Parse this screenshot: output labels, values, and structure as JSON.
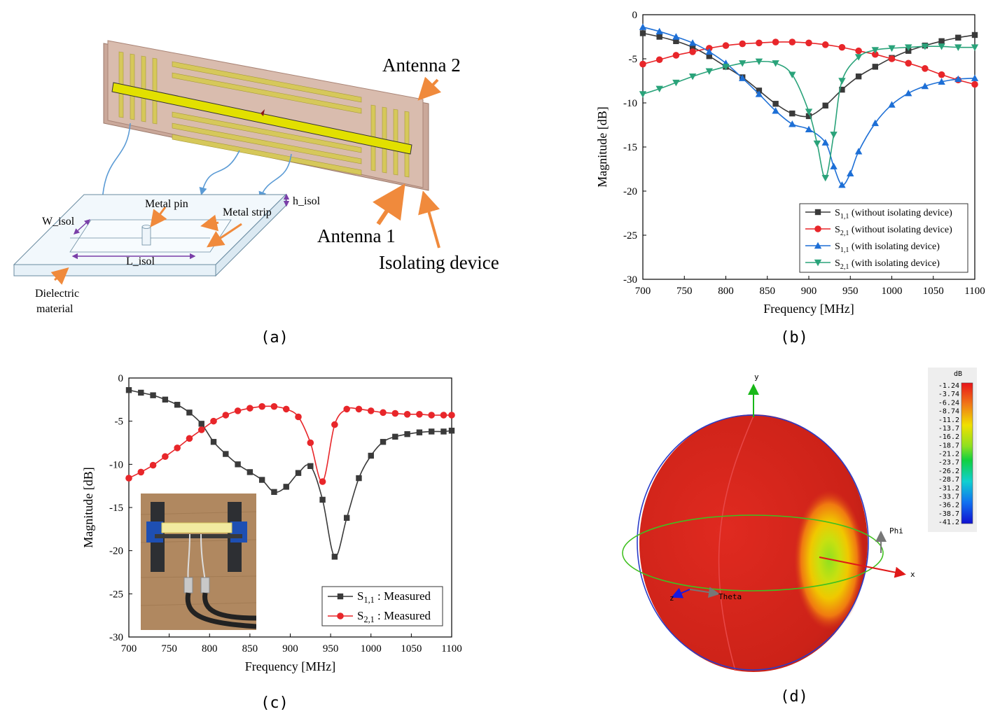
{
  "captions": {
    "a": "(a)",
    "b": "(b)",
    "c": "(c)",
    "d": "(d)"
  },
  "diagram_a": {
    "antenna2": "Antenna 2",
    "antenna1": "Antenna 1",
    "isolating": "Isolating device",
    "metal_pin": "Metal pin",
    "metal_strip": "Metal strip",
    "w_isol": "W_isol",
    "l_isol": "L_isol",
    "h_isol": "h_isol",
    "dielectric_1": "Dielectric",
    "dielectric_2": "material"
  },
  "pattern_d": {
    "legend_unit": "dB",
    "legend_ticks": [
      "-1.24",
      "-3.74",
      "-6.24",
      "-8.74",
      "-11.2",
      "-13.7",
      "-16.2",
      "-18.7",
      "-21.2",
      "-23.7",
      "-26.2",
      "-28.7",
      "-31.2",
      "-33.7",
      "-36.2",
      "-38.7",
      "-41.2"
    ],
    "axis_x": "x",
    "axis_y": "y",
    "axis_z": "z",
    "phi": "Phi",
    "theta": "Theta"
  },
  "chart_data": [
    {
      "type": "line",
      "panel": "b",
      "xlabel": "Frequency [MHz]",
      "ylabel": "Magnitude [dB]",
      "xlim": [
        700,
        1100
      ],
      "ylim": [
        -30,
        0
      ],
      "xticks": [
        700,
        750,
        800,
        850,
        900,
        950,
        1000,
        1050,
        1100
      ],
      "yticks": [
        0,
        -5,
        -10,
        -15,
        -20,
        -25,
        -30
      ],
      "legend_position": "bottom-right",
      "series": [
        {
          "name": "S1,1 (without isolating device)",
          "sub": "1,1",
          "rest": " (without isolating device)",
          "color": "#3a3a3a",
          "marker": "square",
          "x": [
            700,
            720,
            740,
            760,
            780,
            800,
            820,
            840,
            860,
            880,
            900,
            920,
            940,
            960,
            980,
            1000,
            1020,
            1040,
            1060,
            1080,
            1100
          ],
          "y": [
            -2.1,
            -2.5,
            -3.0,
            -3.7,
            -4.7,
            -5.9,
            -7.1,
            -8.6,
            -10.1,
            -11.2,
            -11.5,
            -10.3,
            -8.5,
            -7.0,
            -5.9,
            -4.9,
            -4.1,
            -3.5,
            -3.0,
            -2.6,
            -2.3
          ]
        },
        {
          "name": "S2,1 (without isolating device)",
          "sub": "2,1",
          "rest": " (without isolating device)",
          "color": "#e8262a",
          "marker": "circle",
          "x": [
            700,
            720,
            740,
            760,
            780,
            800,
            820,
            840,
            860,
            880,
            900,
            920,
            940,
            960,
            980,
            1000,
            1020,
            1040,
            1060,
            1080,
            1100
          ],
          "y": [
            -5.6,
            -5.1,
            -4.6,
            -4.2,
            -3.8,
            -3.5,
            -3.3,
            -3.2,
            -3.1,
            -3.1,
            -3.2,
            -3.4,
            -3.7,
            -4.1,
            -4.5,
            -5.0,
            -5.5,
            -6.1,
            -6.8,
            -7.4,
            -7.9
          ]
        },
        {
          "name": "S1,1 (with isolating device)",
          "sub": "1,1",
          "rest": " (with isolating device)",
          "color": "#1d6fd6",
          "marker": "triangle",
          "x": [
            700,
            720,
            740,
            760,
            780,
            800,
            820,
            840,
            860,
            880,
            900,
            920,
            930,
            940,
            950,
            960,
            980,
            1000,
            1020,
            1040,
            1060,
            1080,
            1100
          ],
          "y": [
            -1.4,
            -1.9,
            -2.5,
            -3.2,
            -4.2,
            -5.5,
            -7.2,
            -9.0,
            -10.9,
            -12.4,
            -13.0,
            -14.5,
            -17.2,
            -19.3,
            -18.0,
            -15.5,
            -12.3,
            -10.2,
            -8.9,
            -8.1,
            -7.6,
            -7.3,
            -7.2
          ]
        },
        {
          "name": "S2,1 (with isolating device)",
          "sub": "2,1",
          "rest": " (with isolating device)",
          "color": "#2aa37a",
          "marker": "triangle-down",
          "x": [
            700,
            720,
            740,
            760,
            780,
            800,
            820,
            840,
            860,
            880,
            900,
            910,
            920,
            930,
            940,
            960,
            980,
            1000,
            1020,
            1040,
            1060,
            1080,
            1100
          ],
          "y": [
            -9.0,
            -8.4,
            -7.7,
            -7.0,
            -6.4,
            -5.9,
            -5.5,
            -5.3,
            -5.5,
            -6.8,
            -11.0,
            -14.6,
            -18.5,
            -13.6,
            -7.5,
            -4.8,
            -4.0,
            -3.8,
            -3.7,
            -3.6,
            -3.6,
            -3.7,
            -3.7
          ]
        }
      ]
    },
    {
      "type": "line",
      "panel": "c",
      "xlabel": "Frequency [MHz]",
      "ylabel": "Magnitude [dB]",
      "xlim": [
        700,
        1100
      ],
      "ylim": [
        -30,
        0
      ],
      "xticks": [
        700,
        750,
        800,
        850,
        900,
        950,
        1000,
        1050,
        1100
      ],
      "yticks": [
        0,
        -5,
        -10,
        -15,
        -20,
        -25,
        -30
      ],
      "legend_position": "bottom-right",
      "series": [
        {
          "name": "S1,1 : Measured",
          "sub": "1,1",
          "rest": " : Measured",
          "color": "#3a3a3a",
          "marker": "square",
          "x": [
            700,
            715,
            730,
            745,
            760,
            775,
            790,
            805,
            820,
            835,
            850,
            865,
            880,
            895,
            910,
            925,
            940,
            955,
            970,
            985,
            1000,
            1015,
            1030,
            1045,
            1060,
            1075,
            1090,
            1100
          ],
          "y": [
            -1.4,
            -1.7,
            -2.0,
            -2.5,
            -3.1,
            -4.0,
            -5.3,
            -7.4,
            -8.8,
            -10.0,
            -10.9,
            -11.8,
            -13.2,
            -12.6,
            -11.0,
            -10.2,
            -14.1,
            -20.7,
            -16.2,
            -11.6,
            -9.0,
            -7.4,
            -6.8,
            -6.5,
            -6.3,
            -6.2,
            -6.2,
            -6.1
          ]
        },
        {
          "name": "S2,1 : Measured",
          "sub": "2,1",
          "rest": " : Measured",
          "color": "#e8262a",
          "marker": "circle",
          "x": [
            700,
            715,
            730,
            745,
            760,
            775,
            790,
            805,
            820,
            835,
            850,
            865,
            880,
            895,
            910,
            925,
            940,
            955,
            970,
            985,
            1000,
            1015,
            1030,
            1045,
            1060,
            1075,
            1090,
            1100
          ],
          "y": [
            -11.6,
            -10.9,
            -10.1,
            -9.1,
            -8.1,
            -7.0,
            -6.0,
            -5.0,
            -4.3,
            -3.8,
            -3.5,
            -3.3,
            -3.3,
            -3.6,
            -4.5,
            -7.5,
            -12.0,
            -5.4,
            -3.6,
            -3.6,
            -3.8,
            -4.0,
            -4.1,
            -4.2,
            -4.2,
            -4.3,
            -4.3,
            -4.3
          ]
        }
      ]
    }
  ]
}
